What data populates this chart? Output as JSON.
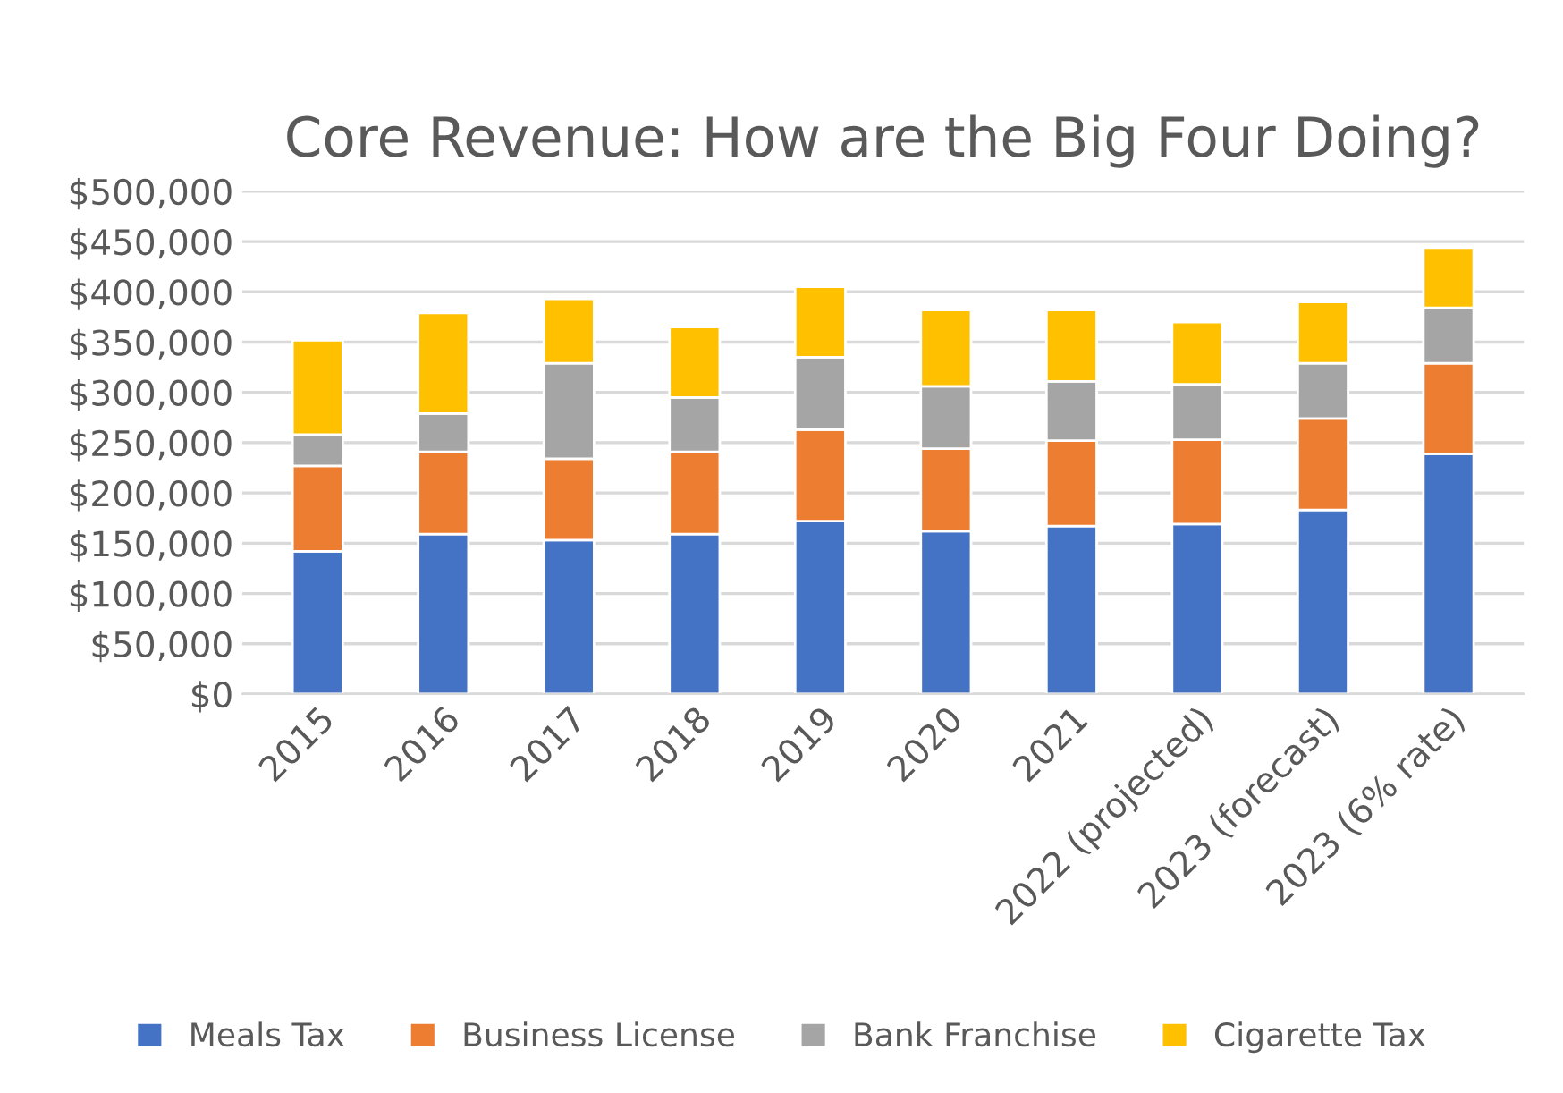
{
  "chart_data": {
    "type": "bar",
    "title": "Core Revenue: How are the Big Four Doing?",
    "stacked": true,
    "categories": [
      "2015",
      "2016",
      "2017",
      "2018",
      "2019",
      "2020",
      "2021",
      "2022 (projected)",
      "2023 (forecast)",
      "2023 (6% rate)"
    ],
    "series": [
      {
        "name": "Meals Tax",
        "color": "#4472c4",
        "values": [
          142000,
          159000,
          153000,
          159000,
          172000,
          162000,
          167000,
          169000,
          183000,
          239000
        ]
      },
      {
        "name": "Business License",
        "color": "#ed7d31",
        "values": [
          85000,
          82000,
          81000,
          82000,
          91000,
          82000,
          85000,
          84000,
          91000,
          90000
        ]
      },
      {
        "name": "Bank Franchise",
        "color": "#a5a5a5",
        "values": [
          31000,
          38000,
          95000,
          54000,
          72000,
          62000,
          59000,
          55000,
          55000,
          55000
        ]
      },
      {
        "name": "Cigarette Tax",
        "color": "#ffc000",
        "values": [
          94000,
          100000,
          64000,
          70000,
          70000,
          76000,
          71000,
          62000,
          61000,
          60000
        ]
      }
    ],
    "ylim": [
      0,
      500000
    ],
    "yticks": [
      {
        "value": 0,
        "label": "$0"
      },
      {
        "value": 50000,
        "label": "$50,000"
      },
      {
        "value": 100000,
        "label": "$100,000"
      },
      {
        "value": 150000,
        "label": "$150,000"
      },
      {
        "value": 200000,
        "label": "$200,000"
      },
      {
        "value": 250000,
        "label": "$250,000"
      },
      {
        "value": 300000,
        "label": "$300,000"
      },
      {
        "value": 350000,
        "label": "$350,000"
      },
      {
        "value": 400000,
        "label": "$400,000"
      },
      {
        "value": 450000,
        "label": "$450,000"
      },
      {
        "value": 500000,
        "label": "$500,000"
      }
    ],
    "grid": "y",
    "legend": "bottom"
  }
}
